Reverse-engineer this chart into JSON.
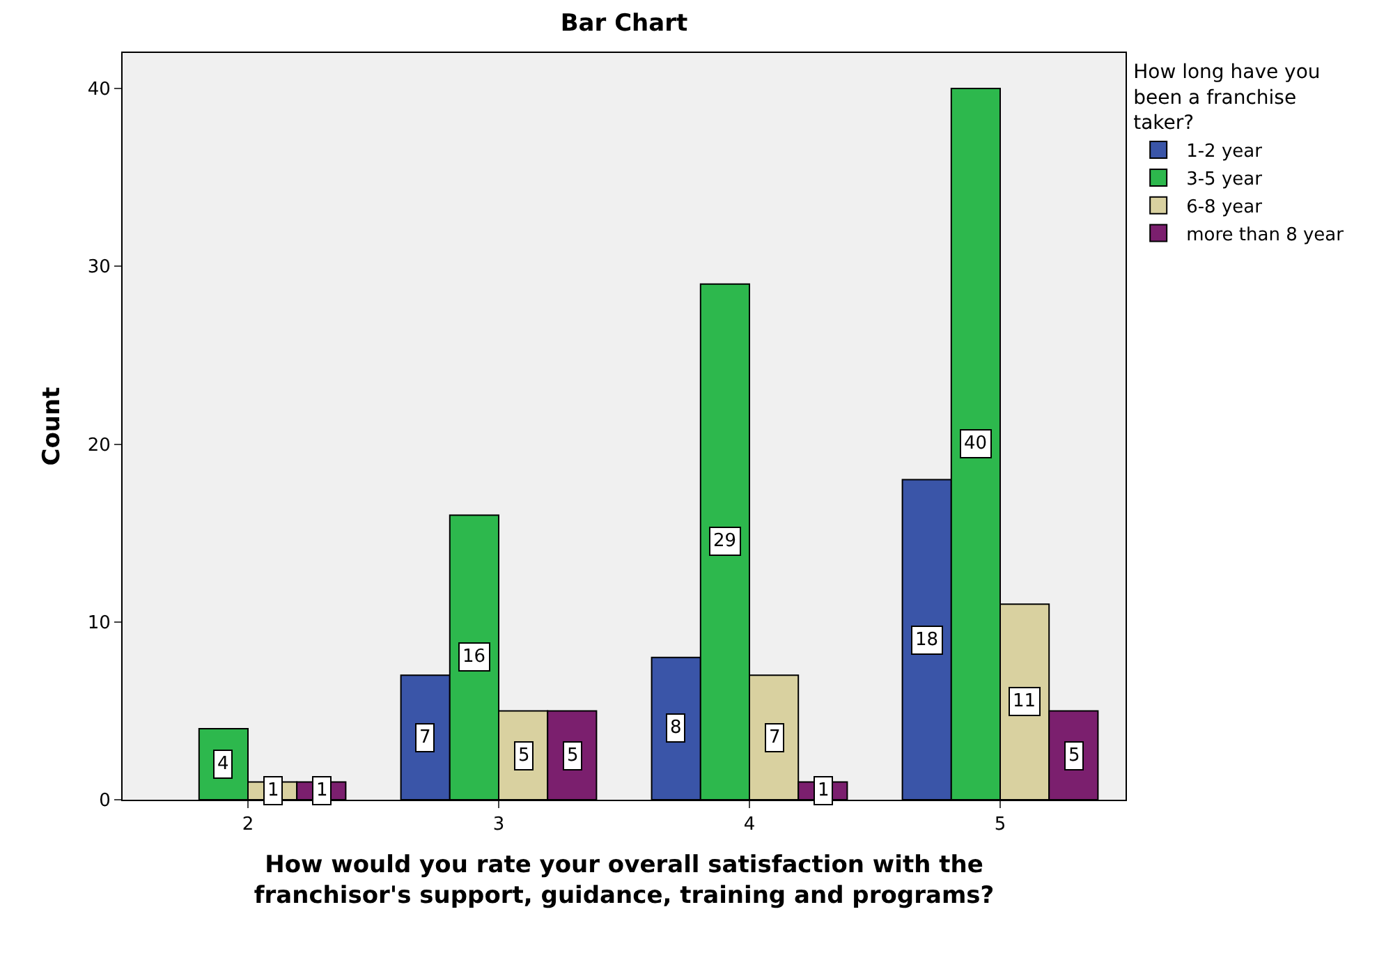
{
  "chart_data": {
    "type": "bar",
    "title": "Bar Chart",
    "xlabel": "How would you rate your overall satisfaction with the franchisor's support, guidance, training and programs?",
    "ylabel": "Count",
    "legend_title": "How long have you been a franchise taker?",
    "categories": [
      "2",
      "3",
      "4",
      "5"
    ],
    "series": [
      {
        "name": "1-2 year",
        "color": "#3a55a8",
        "values": [
          null,
          7,
          8,
          18
        ]
      },
      {
        "name": "3-5 year",
        "color": "#2db84d",
        "values": [
          4,
          16,
          29,
          40
        ]
      },
      {
        "name": "6-8 year",
        "color": "#d9d1a0",
        "values": [
          1,
          5,
          7,
          11
        ]
      },
      {
        "name": "more than 8 year",
        "color": "#7b1f6e",
        "values": [
          1,
          5,
          1,
          5
        ]
      }
    ],
    "ylim": [
      0,
      42
    ],
    "yticks": [
      0,
      10,
      20,
      30,
      40
    ],
    "data_labels": true,
    "legend": "top right",
    "grid": false
  }
}
